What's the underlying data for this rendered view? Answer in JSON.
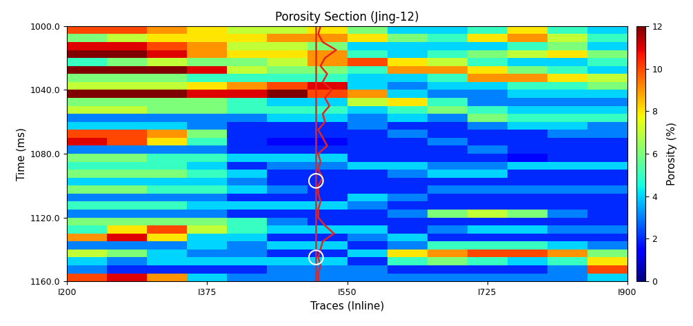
{
  "chart_data": {
    "type": "heatmap",
    "title": "Porosity Section (Jing-12)",
    "x_label": "Traces (Inline)",
    "y_label": "Time (ms)",
    "xlim": [
      200,
      900
    ],
    "ylim": [
      1000,
      1160
    ],
    "xticks": [
      {
        "value": 200,
        "label": "I200"
      },
      {
        "value": 375,
        "label": "I375"
      },
      {
        "value": 550,
        "label": "I550"
      },
      {
        "value": 725,
        "label": "I725"
      },
      {
        "value": 900,
        "label": "I900"
      }
    ],
    "yticks": [
      {
        "value": 1000,
        "label": "1000.0"
      },
      {
        "value": 1040,
        "label": "1040.0"
      },
      {
        "value": 1080,
        "label": "1080.0"
      },
      {
        "value": 1120,
        "label": "1120.0"
      },
      {
        "value": 1160,
        "label": "1160.0"
      }
    ],
    "x_bins": [
      200,
      250,
      300,
      350,
      400,
      450,
      500,
      550,
      600,
      650,
      700,
      750,
      800,
      850,
      900
    ],
    "y_bins": [
      1000,
      1005,
      1010,
      1015,
      1020,
      1025,
      1030,
      1035,
      1040,
      1045,
      1050,
      1055,
      1060,
      1065,
      1070,
      1075,
      1080,
      1085,
      1090,
      1095,
      1100,
      1105,
      1110,
      1115,
      1120,
      1125,
      1130,
      1135,
      1140,
      1145,
      1150,
      1155,
      1160
    ],
    "cells": [
      [
        10,
        10,
        9,
        8,
        7,
        7,
        8,
        6,
        4,
        4,
        5,
        8,
        5,
        4
      ],
      [
        6,
        7,
        8,
        8,
        8,
        9,
        9,
        8,
        6,
        5,
        8,
        9,
        7,
        5
      ],
      [
        11,
        11,
        10,
        9,
        7,
        7,
        6,
        4,
        4,
        4,
        4,
        5,
        6,
        4
      ],
      [
        12,
        12,
        11,
        9,
        8,
        8,
        9,
        5,
        4,
        5,
        6,
        7,
        8,
        6
      ],
      [
        5,
        6,
        7,
        6,
        6,
        7,
        9,
        10,
        8,
        7,
        5,
        4,
        4,
        5
      ],
      [
        12,
        12,
        12,
        11,
        7,
        6,
        6,
        5,
        9,
        9,
        8,
        6,
        5,
        4
      ],
      [
        6,
        6,
        6,
        5,
        5,
        5,
        5,
        4,
        4,
        5,
        9,
        9,
        8,
        7
      ],
      [
        7,
        7,
        7,
        8,
        9,
        10,
        11,
        4,
        3,
        4,
        4,
        5,
        5,
        6
      ],
      [
        12,
        12,
        12,
        11,
        11,
        12,
        10,
        9,
        4,
        3,
        3,
        4,
        4,
        4
      ],
      [
        6,
        6,
        6,
        6,
        5,
        4,
        4,
        7,
        8,
        5,
        3,
        3,
        3,
        3
      ],
      [
        7,
        7,
        6,
        6,
        5,
        5,
        5,
        4,
        5,
        6,
        5,
        4,
        4,
        4
      ],
      [
        3,
        3,
        3,
        3,
        3,
        4,
        4,
        3,
        4,
        3,
        6,
        5,
        5,
        5
      ],
      [
        4,
        4,
        4,
        3,
        2,
        2,
        2,
        3,
        2,
        2,
        3,
        4,
        4,
        3
      ],
      [
        10,
        10,
        9,
        6,
        2,
        2,
        2,
        2,
        3,
        2,
        2,
        2,
        3,
        3
      ],
      [
        11,
        10,
        8,
        5,
        2,
        1.5,
        1.5,
        2,
        2,
        3,
        2,
        2,
        2,
        2
      ],
      [
        3,
        3,
        3,
        3,
        2,
        2,
        2,
        2,
        2,
        2,
        3,
        2,
        2,
        2
      ],
      [
        6,
        6,
        5,
        5,
        4,
        4,
        4,
        2,
        2,
        2,
        2,
        1.5,
        2,
        2
      ],
      [
        5,
        5,
        5,
        4,
        2,
        3,
        3,
        4,
        4,
        3,
        3,
        4,
        4,
        4
      ],
      [
        6,
        6,
        6,
        5,
        4,
        2,
        2,
        2,
        3,
        4,
        4,
        2,
        2,
        2
      ],
      [
        4,
        4,
        4,
        4,
        3,
        2,
        2,
        2,
        2,
        2,
        2,
        2,
        2,
        2
      ],
      [
        6,
        6,
        5,
        5,
        4,
        3,
        2,
        2,
        2,
        3,
        3,
        3,
        3,
        3
      ],
      [
        3,
        3,
        3,
        3,
        2,
        2,
        2,
        4,
        3,
        2,
        2,
        2,
        2,
        2
      ],
      [
        5,
        5,
        5,
        4,
        4,
        4,
        4,
        3,
        2,
        2,
        2,
        2,
        2,
        2
      ],
      [
        3,
        3,
        3,
        3,
        2,
        2,
        2,
        2,
        3,
        6,
        7,
        6,
        3,
        2
      ],
      [
        6,
        6,
        6,
        6,
        5,
        3,
        2,
        2,
        2,
        2,
        2,
        2,
        2,
        2
      ],
      [
        5,
        8,
        10,
        7,
        5,
        4,
        4,
        4,
        2,
        3,
        4,
        4,
        3,
        3
      ],
      [
        9,
        11,
        8,
        4,
        4,
        2,
        2,
        3,
        4,
        2,
        2,
        2,
        2,
        2
      ],
      [
        3,
        3,
        3,
        4,
        3,
        4,
        4,
        2,
        3,
        5,
        5,
        5,
        4,
        3
      ],
      [
        7,
        6,
        4,
        3,
        3,
        2,
        2,
        4,
        8,
        9,
        10,
        10,
        9,
        6
      ],
      [
        4,
        3,
        4,
        4,
        4,
        4,
        4,
        2,
        5,
        6,
        5,
        4,
        5,
        8
      ],
      [
        3,
        2,
        2,
        2,
        2,
        3,
        3,
        3,
        2,
        2,
        2,
        2,
        3,
        10
      ],
      [
        10,
        11,
        9,
        4,
        3,
        3,
        3,
        3,
        3,
        3,
        3,
        3,
        3,
        4
      ]
    ],
    "colorbar_label": "Porosity (%)",
    "colorbar_range": [
      0,
      12
    ],
    "colorbar_ticks": [
      0,
      2,
      4,
      6,
      8,
      10,
      12
    ],
    "well": {
      "trace": 511,
      "color": "#e8231f",
      "time": [
        1000,
        1005,
        1010,
        1015,
        1020,
        1025,
        1030,
        1035,
        1040,
        1045,
        1050,
        1055,
        1060,
        1065,
        1070,
        1075,
        1080,
        1085,
        1090,
        1095,
        1100,
        1105,
        1110,
        1115,
        1120,
        1125,
        1130,
        1135,
        1140,
        1145,
        1150,
        1155,
        1160
      ],
      "porosity": [
        2,
        1,
        3,
        9,
        4,
        2,
        5,
        3,
        7,
        4,
        6,
        3,
        4,
        1,
        3,
        5,
        1,
        2,
        1,
        3,
        1,
        1,
        2,
        1,
        1,
        4,
        8,
        3,
        2,
        1,
        2,
        1,
        1
      ]
    },
    "markers": [
      {
        "x": 511,
        "y": 1097,
        "color": "#ffffff"
      },
      {
        "x": 511,
        "y": 1145,
        "color": "#ffffff"
      }
    ]
  }
}
